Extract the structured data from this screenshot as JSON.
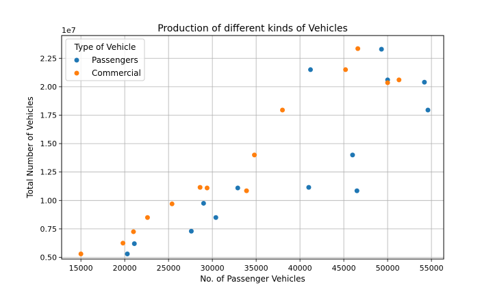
{
  "chart_data": {
    "type": "scatter",
    "title": "Production of different kinds of Vehicles",
    "xlabel": "No. of Passenger Vehicles",
    "ylabel": "Total Number of Vehicles",
    "y_offset_label": "1e7",
    "xlim": [
      12800,
      56400
    ],
    "ylim": [
      4850000,
      24500000
    ],
    "x_ticks": [
      15000,
      20000,
      25000,
      30000,
      35000,
      40000,
      45000,
      50000,
      55000
    ],
    "y_ticks": [
      5000000,
      7500000,
      10000000,
      12500000,
      15000000,
      17500000,
      20000000,
      22500000
    ],
    "x_tick_labels": [
      "15000",
      "20000",
      "25000",
      "30000",
      "35000",
      "40000",
      "45000",
      "50000",
      "55000"
    ],
    "y_tick_labels": [
      "0.50",
      "0.75",
      "1.00",
      "1.25",
      "1.50",
      "1.75",
      "2.00",
      "2.25"
    ],
    "grid": true,
    "legend": {
      "title": "Type of Vehicle",
      "placement": "upper-left"
    },
    "series": [
      {
        "name": "Passengers",
        "color": "#1f77b4",
        "points": [
          [
            20300,
            5300000
          ],
          [
            21100,
            6200000
          ],
          [
            27600,
            7300000
          ],
          [
            29000,
            9750000
          ],
          [
            30400,
            8500000
          ],
          [
            32900,
            11100000
          ],
          [
            41000,
            11150000
          ],
          [
            41200,
            21500000
          ],
          [
            46000,
            14000000
          ],
          [
            46500,
            10850000
          ],
          [
            49300,
            23300000
          ],
          [
            50000,
            20600000
          ],
          [
            54200,
            20400000
          ],
          [
            54600,
            17950000
          ]
        ]
      },
      {
        "name": "Commercial",
        "color": "#ff7f0e",
        "points": [
          [
            15000,
            5300000
          ],
          [
            19800,
            6250000
          ],
          [
            21000,
            7250000
          ],
          [
            22600,
            8500000
          ],
          [
            25400,
            9700000
          ],
          [
            28600,
            11150000
          ],
          [
            29400,
            11100000
          ],
          [
            33900,
            10850000
          ],
          [
            34800,
            14000000
          ],
          [
            38000,
            17950000
          ],
          [
            45200,
            21500000
          ],
          [
            46600,
            23350000
          ],
          [
            50000,
            20350000
          ],
          [
            51300,
            20600000
          ]
        ]
      }
    ]
  }
}
